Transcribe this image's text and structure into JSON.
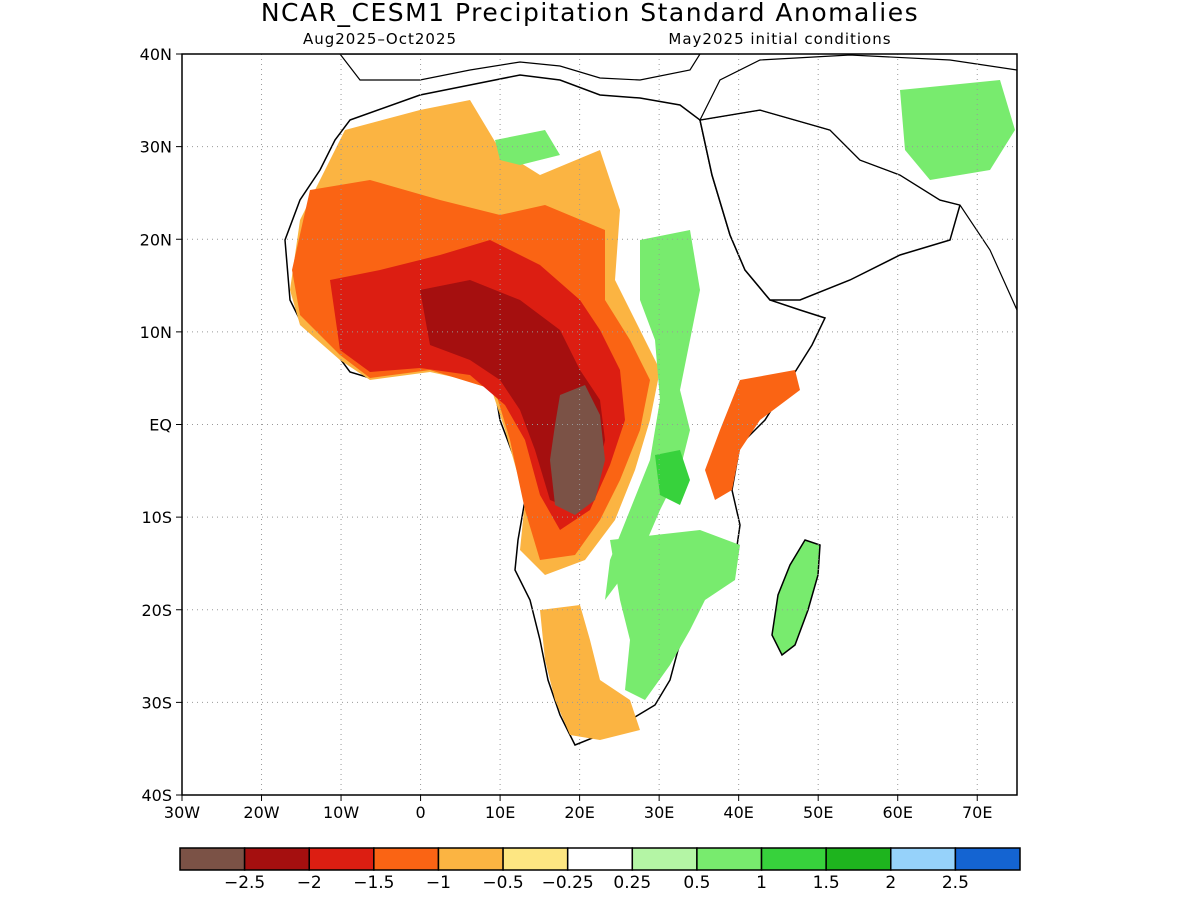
{
  "title": "NCAR_CESM1 Precipitation Standard Anomalies",
  "subtitle_left": "Aug2025–Oct2025",
  "subtitle_right": "May2025 initial conditions",
  "map": {
    "lon_range": [
      -30,
      75
    ],
    "lat_range": [
      -40,
      40
    ],
    "lon_ticks": [
      "30W",
      "20W",
      "10W",
      "0",
      "10E",
      "20E",
      "30E",
      "40E",
      "50E",
      "60E",
      "70E"
    ],
    "lat_ticks": [
      "40N",
      "30N",
      "20N",
      "10N",
      "EQ",
      "10S",
      "20S",
      "30S",
      "40S"
    ],
    "grid": true,
    "colors": {
      "le_-2.5": "#7b5246",
      "-2.5_-2": "#a50f0f",
      "-2_-1.5": "#dc1e12",
      "-1.5_-1": "#fa6414",
      "-1_-0.5": "#fbb442",
      "-0.5_-0.25": "#fde682",
      "neutral": "#ffffff",
      "0.25_0.5": "#b4f5a5",
      "0.5_1": "#78eb6e",
      "1_1.5": "#37d23c",
      "1.5_2": "#1eb41e",
      "2_2.5": "#96d2fa",
      "ge_2.5": "#1464d2"
    }
  },
  "colorbar": {
    "colors": [
      "#7b5246",
      "#a50f0f",
      "#dc1e12",
      "#fa6414",
      "#fbb442",
      "#fde682",
      "#ffffff",
      "#b4f5a5",
      "#78eb6e",
      "#37d23c",
      "#1eb41e",
      "#96d2fa",
      "#1464d2"
    ],
    "labels": [
      "−2.5",
      "−2",
      "−1.5",
      "−1",
      "−0.5",
      "−0.25",
      "0.25",
      "0.5",
      "1",
      "1.5",
      "2",
      "2.5"
    ]
  }
}
